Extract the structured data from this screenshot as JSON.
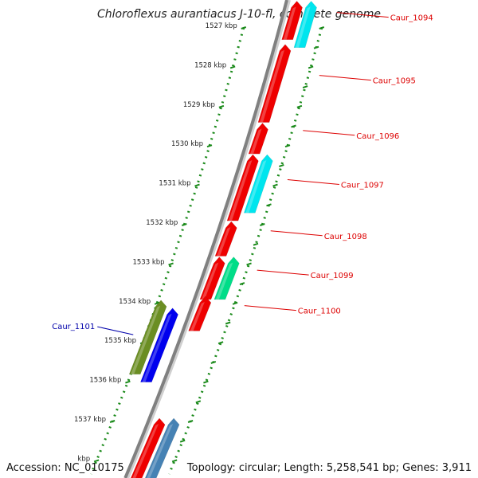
{
  "title": "Chloroflexus aurantiacus J-10-fl, complete genome",
  "footer": {
    "accession": "Accession: NC_010175",
    "topology": "Topology: circular; Length: 5,258,541 bp; Genes: 3,911"
  },
  "colors": {
    "backbone": "#808080",
    "tick_forward": "#1a8a1a",
    "tick_reverse": "#1a8a1a",
    "gene_red": "#ee0000",
    "gene_cyan": "#00e5ee",
    "gene_green": "#00dd88",
    "gene_olive": "#6b8e23",
    "gene_blue": "#0000ee",
    "gene_steel": "#4682b4",
    "label_red": "#dd0000",
    "label_blue": "#0000aa"
  },
  "ticks": [
    {
      "label": "1527 kbp",
      "kbp": 1527
    },
    {
      "label": "1528 kbp",
      "kbp": 1528
    },
    {
      "label": "1529 kbp",
      "kbp": 1529
    },
    {
      "label": "1530 kbp",
      "kbp": 1530
    },
    {
      "label": "1531 kbp",
      "kbp": 1531
    },
    {
      "label": "1532 kbp",
      "kbp": 1532
    },
    {
      "label": "1533 kbp",
      "kbp": 1533
    },
    {
      "label": "1534 kbp",
      "kbp": 1534
    },
    {
      "label": "1535 kbp",
      "kbp": 1535
    },
    {
      "label": "1536 kbp",
      "kbp": 1536
    },
    {
      "label": "1537 kbp",
      "kbp": 1537
    },
    {
      "label": "kbp",
      "kbp": 1538
    }
  ],
  "genes": [
    {
      "start": 1526.4,
      "end": 1527.3,
      "strand": "+",
      "color": "gene_red",
      "label": "Caur_1094"
    },
    {
      "start": 1526.4,
      "end": 1527.5,
      "strand": "+",
      "color": "gene_cyan",
      "lane": 2
    },
    {
      "start": 1527.5,
      "end": 1529.4,
      "strand": "+",
      "color": "gene_red",
      "label": "Caur_1095"
    },
    {
      "start": 1529.5,
      "end": 1530.2,
      "strand": "+",
      "color": "gene_red",
      "label": "Caur_1096"
    },
    {
      "start": 1530.3,
      "end": 1531.9,
      "strand": "+",
      "color": "gene_red",
      "label": "Caur_1097"
    },
    {
      "start": 1530.3,
      "end": 1531.7,
      "strand": "+",
      "color": "gene_cyan",
      "lane": 2
    },
    {
      "start": 1532.0,
      "end": 1532.8,
      "strand": "+",
      "color": "gene_red",
      "label": "Caur_1098"
    },
    {
      "start": 1532.9,
      "end": 1533.9,
      "strand": "+",
      "color": "gene_red"
    },
    {
      "start": 1532.9,
      "end": 1533.9,
      "strand": "+",
      "color": "gene_green",
      "lane": 2,
      "label": "Caur_1099"
    },
    {
      "start": 1533.9,
      "end": 1534.7,
      "strand": "+",
      "color": "gene_red",
      "label": "Caur_1100"
    },
    {
      "start": 1534.0,
      "end": 1535.8,
      "strand": "-",
      "color": "gene_olive",
      "lane": 2
    },
    {
      "start": 1534.2,
      "end": 1536.0,
      "strand": "-",
      "color": "gene_blue",
      "label": "Caur_1101"
    },
    {
      "start": 1537.0,
      "end": 1538.6,
      "strand": "+",
      "color": "gene_red"
    },
    {
      "start": 1537.0,
      "end": 1538.6,
      "strand": "+",
      "color": "gene_steel",
      "lane": 2
    }
  ]
}
